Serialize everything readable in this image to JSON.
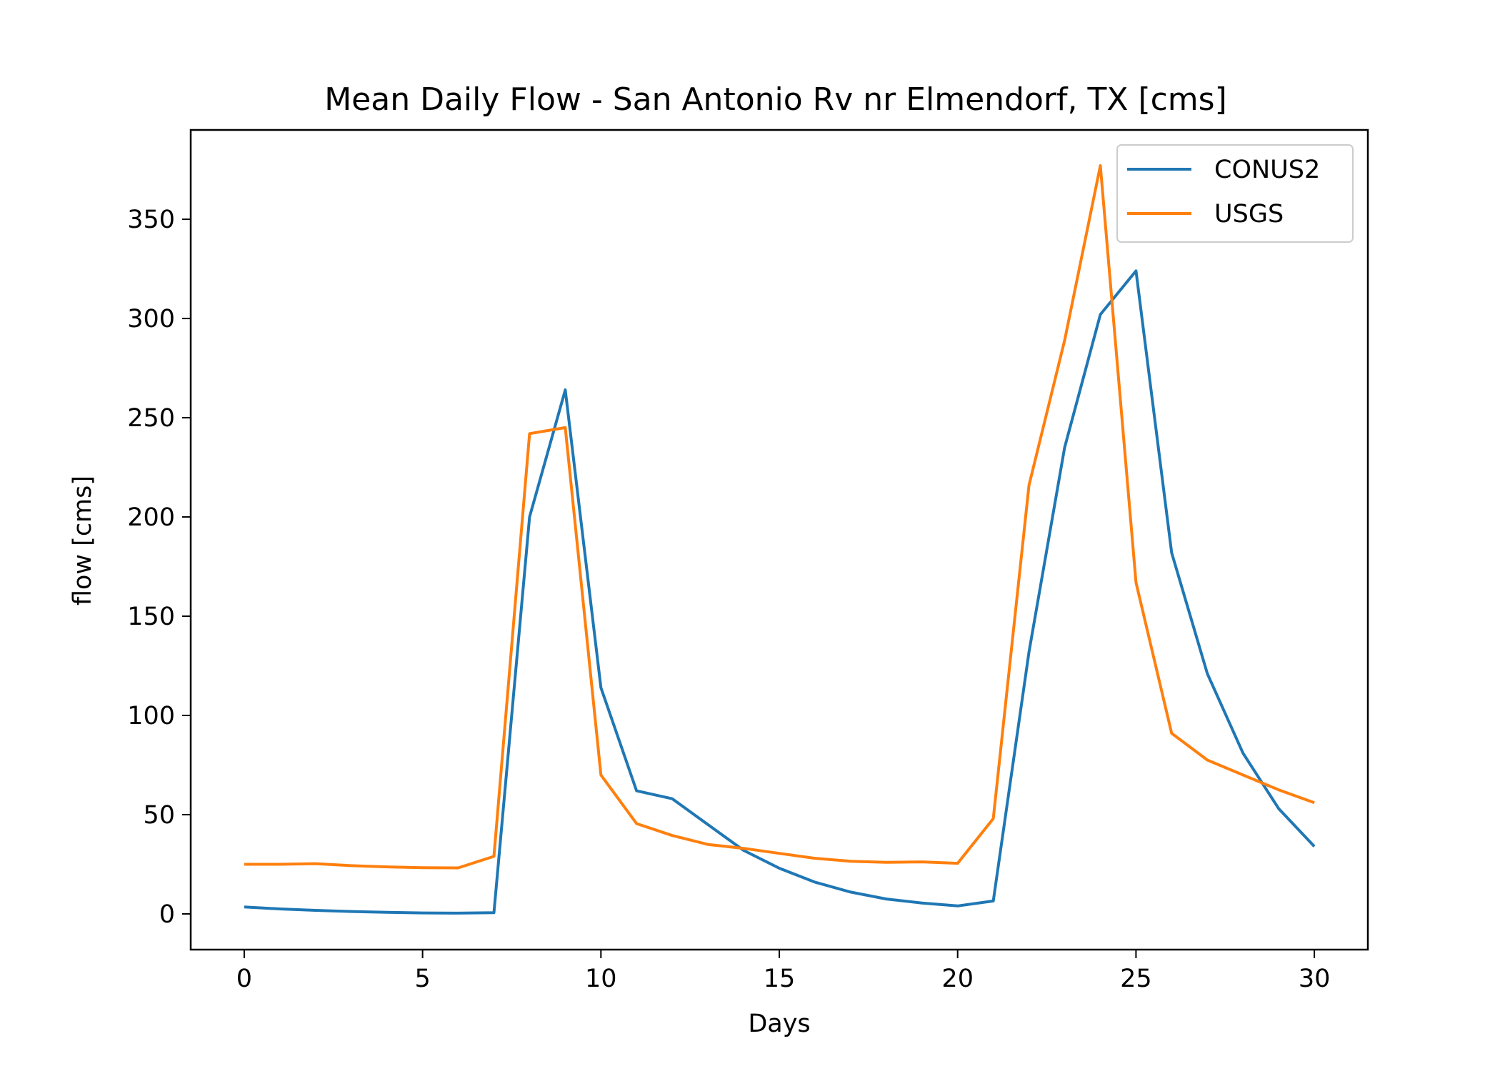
{
  "chart_data": {
    "type": "line",
    "title": "Mean Daily Flow - San Antonio Rv nr Elmendorf, TX [cms]",
    "xlabel": "Days",
    "ylabel": "flow [cms]",
    "xlim": [
      -1.5,
      31.5
    ],
    "ylim": [
      -18,
      395
    ],
    "xticks": [
      0,
      5,
      10,
      15,
      20,
      25,
      30
    ],
    "yticks": [
      0,
      50,
      100,
      150,
      200,
      250,
      300,
      350
    ],
    "grid": false,
    "legend_position": "top-right",
    "x": [
      0,
      1,
      2,
      3,
      4,
      5,
      6,
      7,
      8,
      9,
      10,
      11,
      12,
      13,
      14,
      15,
      16,
      17,
      18,
      19,
      20,
      21,
      22,
      23,
      24,
      25,
      26,
      27,
      28,
      29,
      30
    ],
    "series": [
      {
        "name": "CONUS2",
        "color": "#1f77b4",
        "values": [
          3.5,
          2.5,
          1.8,
          1.2,
          0.8,
          0.5,
          0.4,
          0.6,
          200,
          264,
          114,
          62,
          58,
          45,
          32,
          23,
          16,
          11,
          7.5,
          5.5,
          4,
          6.5,
          132,
          235,
          302,
          324,
          182,
          121,
          81,
          53,
          34
        ]
      },
      {
        "name": "USGS",
        "color": "#ff7f0e",
        "values": [
          25,
          25,
          25.3,
          24.3,
          23.7,
          23.3,
          23.2,
          29,
          242,
          245,
          70,
          45.5,
          39.5,
          35,
          33,
          30.5,
          28,
          26.5,
          26,
          26.2,
          25.5,
          48,
          216,
          289,
          377,
          167,
          91,
          77.5,
          70,
          62.5,
          56
        ]
      }
    ]
  }
}
